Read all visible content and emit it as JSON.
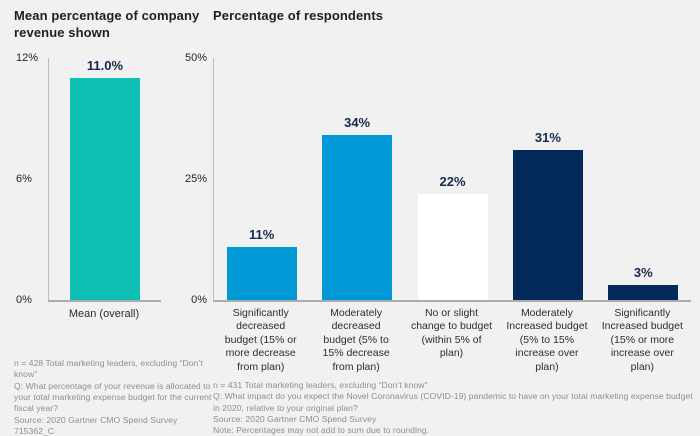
{
  "page": {
    "background": "#f1f1f2"
  },
  "colors": {
    "teal": "#0dc0b3",
    "blue": "#0099d6",
    "navy": "#042a5c",
    "white_bar": "#ffffff",
    "data_label": "#16294e",
    "axis_line": "#ababab",
    "title_text": "#1f1f1f",
    "category_text": "#2d2d2d",
    "footnote_text": "#8e8e8e"
  },
  "left_chart": {
    "title": "Mean percentage of company revenue shown",
    "y_ticks": [
      "12%",
      "6%",
      "0%"
    ],
    "x_label": "Mean (overall)",
    "bar_label": "11.0%",
    "footnote_lines": [
      "n = 428 Total marketing leaders, excluding “Don’t know”",
      "Q: What percentage of your revenue is allocated to your total marketing expense budget for the current fiscal year?",
      "Source: 2020 Gartner CMO Spend Survey",
      "715362_C"
    ]
  },
  "right_chart": {
    "title": "Percentage of respondents",
    "y_ticks": [
      "50%",
      "25%",
      "0%"
    ],
    "footnote_lines": [
      "n = 431 Total marketing leaders, excluding “Don’t know”",
      "Q: What impact do you expect the Novel Coronavirus (COVID-19) pandemic to have on your total marketing expense budget in 2020, relative to your original plan?",
      "Source: 2020 Gartner CMO Spend Survey",
      "Note: Percentages may not add to sum due to rounding."
    ]
  },
  "chart_data": [
    {
      "type": "bar",
      "title": "Mean percentage of company revenue shown",
      "categories": [
        "Mean (overall)"
      ],
      "values": [
        11.0
      ],
      "data_labels": [
        "11.0%"
      ],
      "xlabel": "",
      "ylabel": "",
      "ylim": [
        0,
        12
      ],
      "yticks": [
        "0%",
        "6%",
        "12%"
      ],
      "bar_colors": [
        "teal"
      ],
      "grid": false,
      "legend": "none"
    },
    {
      "type": "bar",
      "title": "Percentage of respondents",
      "categories": [
        "Significantly decreased budget (15% or more decrease from plan)",
        "Moderately decreased budget (5% to 15% decrease from plan)",
        "No or slight change to budget (within 5% of plan)",
        "Moderately Increased budget (5% to 15% increase over plan)",
        "Significantly Increased budget (15% or more increase over plan)"
      ],
      "values": [
        11,
        34,
        22,
        31,
        3
      ],
      "data_labels": [
        "11%",
        "34%",
        "22%",
        "31%",
        "3%"
      ],
      "xlabel": "",
      "ylabel": "",
      "ylim": [
        0,
        50
      ],
      "yticks": [
        "0%",
        "25%",
        "50%"
      ],
      "bar_colors": [
        "blue",
        "blue",
        "white_bar",
        "navy",
        "navy"
      ],
      "grid": false,
      "legend": "none"
    }
  ]
}
